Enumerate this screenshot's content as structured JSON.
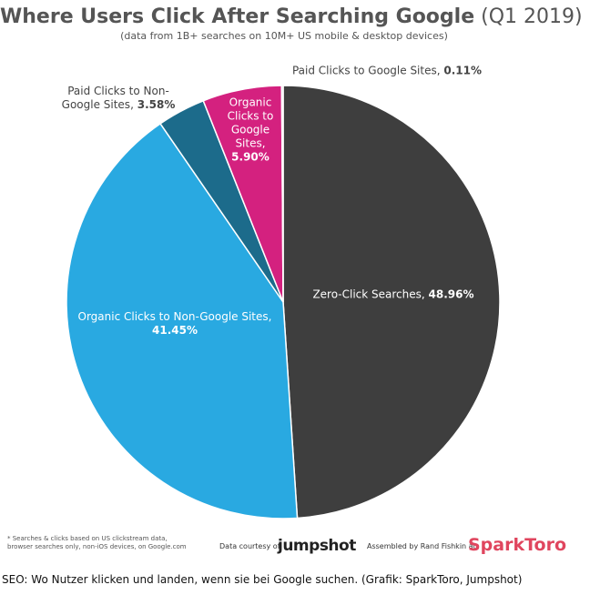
{
  "chart_data": {
    "type": "pie",
    "title": "Where Users Click After Searching Google",
    "title_suffix": "(Q1 2019)",
    "subtitle": "(data from 1B+ searches on 10M+ US mobile & desktop devices)",
    "categories": [
      "Zero-Click Searches,",
      "Organic Clicks to Non-Google Sites,",
      "Paid Clicks to Non-Google Sites,",
      "Organic Clicks to Google Sites,",
      "Paid Clicks to Google Sites,"
    ],
    "values": [
      48.96,
      41.45,
      3.58,
      5.9,
      0.11
    ],
    "value_labels": [
      "48.96%",
      "41.45%",
      "3.58%",
      "5.90%",
      "0.11%"
    ],
    "colors": [
      "#3e3e3e",
      "#29a9e1",
      "#1c6b8b",
      "#d4217f",
      "#9aa3a8"
    ],
    "footnote": "* Searches & clicks based on US clickstream data, browser searches only, non-iOS devices, on Google.com",
    "credit_text": "Data courtesy of",
    "credit_brand": "jumpshot",
    "author_text": "Assembled by Rand Fishkin at",
    "author_brand": "SparkToro"
  },
  "caption": "SEO: Wo Nutzer klicken und landen, wenn sie bei Google suchen. (Grafik: SparkToro, Jumpshot)"
}
